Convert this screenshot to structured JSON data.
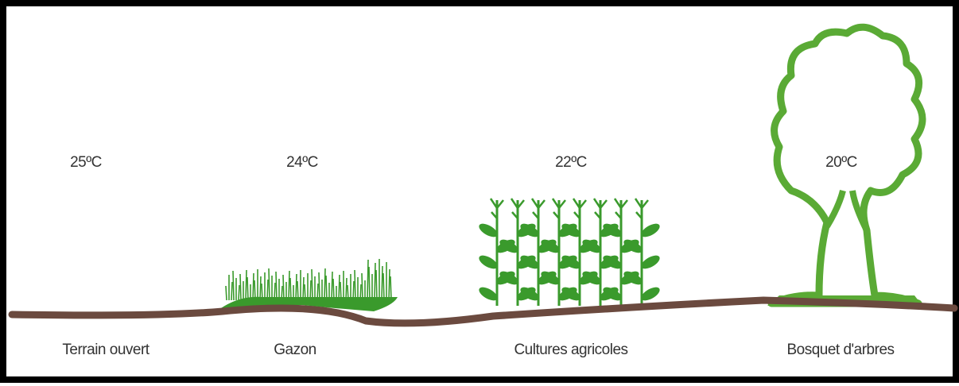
{
  "zones": [
    {
      "temperature": "25ºC",
      "label": "Terrain ouvert"
    },
    {
      "temperature": "24ºC",
      "label": "Gazon"
    },
    {
      "temperature": "22ºC",
      "label": "Cultures agricoles"
    },
    {
      "temperature": "20ºC",
      "label": "Bosquet d'arbres"
    }
  ]
}
